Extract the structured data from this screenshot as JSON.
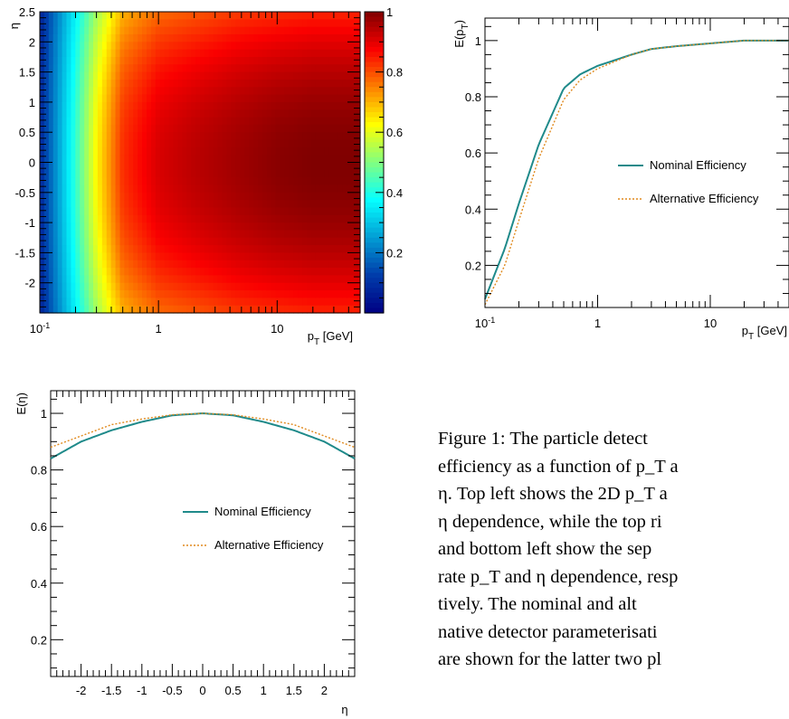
{
  "chart_data": [
    {
      "type": "heatmap",
      "title": "",
      "xlabel": "p_T [GeV]",
      "ylabel": "η",
      "x_scale": "log",
      "xlim": [
        0.1,
        50
      ],
      "ylim": [
        -2.5,
        2.5
      ],
      "x_ticks": [
        "10",
        "1",
        "10"
      ],
      "y_ticks": [
        "2.5",
        "2",
        "1.5",
        "1",
        "0.5",
        "0",
        "-0.5",
        "-1",
        "-1.5",
        "-2"
      ],
      "colorbar": {
        "range": [
          0,
          1
        ],
        "ticks": [
          "1",
          "0.8",
          "0.6",
          "0.4",
          "0.2"
        ]
      },
      "x": [
        0.1,
        0.2,
        0.3,
        0.5,
        1,
        2,
        5,
        10,
        20,
        50
      ],
      "values_eta0": [
        0.08,
        0.42,
        0.63,
        0.83,
        0.91,
        0.94,
        0.97,
        0.99,
        1.0,
        1.0
      ],
      "values_eta_edge": [
        0.07,
        0.36,
        0.53,
        0.7,
        0.77,
        0.79,
        0.82,
        0.83,
        0.84,
        0.84
      ]
    },
    {
      "type": "line",
      "title": "",
      "xlabel": "p_T [GeV]",
      "ylabel": "E(p_T)",
      "x_scale": "log",
      "xlim": [
        0.1,
        50
      ],
      "ylim": [
        0.05,
        1.08
      ],
      "x_ticks": [
        "10",
        "1",
        "10"
      ],
      "y_ticks": [
        "1",
        "0.8",
        "0.6",
        "0.4",
        "0.2"
      ],
      "legend": "right",
      "x": [
        0.1,
        0.15,
        0.2,
        0.3,
        0.5,
        0.7,
        1,
        2,
        3,
        5,
        10,
        20,
        50
      ],
      "series": [
        {
          "name": "Nominal Efficiency",
          "color": "#1f8a8a",
          "values": [
            0.08,
            0.26,
            0.42,
            0.63,
            0.83,
            0.88,
            0.91,
            0.95,
            0.97,
            0.98,
            0.99,
            1.0,
            1.0
          ]
        },
        {
          "name": "Alternative Efficiency",
          "color": "#e08a1e",
          "values": [
            0.06,
            0.2,
            0.36,
            0.58,
            0.79,
            0.86,
            0.9,
            0.95,
            0.97,
            0.98,
            0.99,
            1.0,
            1.0
          ]
        }
      ]
    },
    {
      "type": "line",
      "title": "",
      "xlabel": "η",
      "ylabel": "E(η)",
      "xlim": [
        -2.5,
        2.5
      ],
      "ylim": [
        0.07,
        1.08
      ],
      "x_ticks": [
        "-2",
        "-1.5",
        "-1",
        "-0.5",
        "0",
        "0.5",
        "1",
        "1.5",
        "2"
      ],
      "y_ticks": [
        "1",
        "0.8",
        "0.6",
        "0.4",
        "0.2"
      ],
      "legend": "right",
      "x": [
        -2.5,
        -2,
        -1.5,
        -1,
        -0.5,
        0,
        0.5,
        1,
        1.5,
        2,
        2.5
      ],
      "series": [
        {
          "name": "Nominal Efficiency",
          "color": "#1f8a8a",
          "values": [
            0.84,
            0.9,
            0.94,
            0.97,
            0.993,
            1.0,
            0.993,
            0.97,
            0.94,
            0.9,
            0.84
          ]
        },
        {
          "name": "Alternative Efficiency",
          "color": "#e08a1e",
          "values": [
            0.88,
            0.92,
            0.96,
            0.98,
            0.995,
            1.0,
            0.995,
            0.98,
            0.96,
            0.92,
            0.88
          ]
        }
      ]
    }
  ],
  "caption": "Figure 1: The particle detect\nefficiency as a function of p_T a\nη. Top left shows the 2D p_T a\nη dependence, while the top ri\nand bottom left show the sep\nrate p_T and η dependence, resp\ntively. The nominal and alt\nnative detector parameterisati\nare shown for the latter two pl"
}
